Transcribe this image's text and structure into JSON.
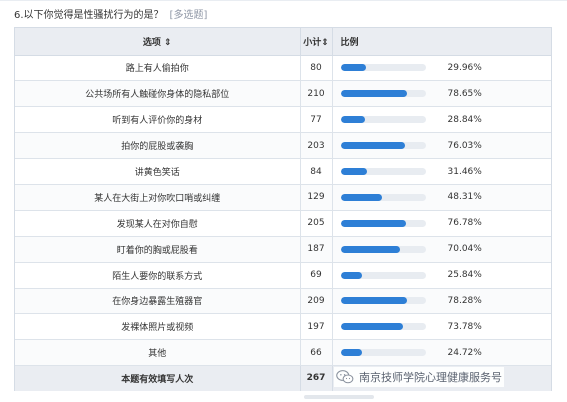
{
  "question": {
    "title": "6.以下你觉得是性骚扰行为的是？",
    "tag": "[多选题]"
  },
  "table": {
    "headers": {
      "option": "选项 ⇕",
      "count": "小计⇕",
      "ratio": "比例"
    },
    "rows": [
      {
        "option": "路上有人偷拍你",
        "count": "80",
        "percent": "29.96%",
        "fraction": 0.2996
      },
      {
        "option": "公共场所有人触碰你身体的隐私部位",
        "count": "210",
        "percent": "78.65%",
        "fraction": 0.7865
      },
      {
        "option": "听到有人评价你的身材",
        "count": "77",
        "percent": "28.84%",
        "fraction": 0.2884
      },
      {
        "option": "拍你的屁股或袭胸",
        "count": "203",
        "percent": "76.03%",
        "fraction": 0.7603
      },
      {
        "option": "讲黄色笑话",
        "count": "84",
        "percent": "31.46%",
        "fraction": 0.3146
      },
      {
        "option": "某人在大街上对你吹口哨或纠缠",
        "count": "129",
        "percent": "48.31%",
        "fraction": 0.4831
      },
      {
        "option": "发现某人在对你自慰",
        "count": "205",
        "percent": "76.78%",
        "fraction": 0.7678
      },
      {
        "option": "盯着你的胸或屁股看",
        "count": "187",
        "percent": "70.04%",
        "fraction": 0.7004
      },
      {
        "option": "陌生人要你的联系方式",
        "count": "69",
        "percent": "25.84%",
        "fraction": 0.2584
      },
      {
        "option": "在你身边暴露生殖器官",
        "count": "209",
        "percent": "78.28%",
        "fraction": 0.7828
      },
      {
        "option": "发裸体照片或视频",
        "count": "197",
        "percent": "73.78%",
        "fraction": 0.7378
      },
      {
        "option": "其他",
        "count": "66",
        "percent": "24.72%",
        "fraction": 0.2472
      }
    ],
    "footer": {
      "label": "本题有效填写人次",
      "count": "267"
    }
  },
  "colors": {
    "bar": "#2e7fd6",
    "bar_track": "#e8ecf1",
    "header_bg": "#eaedf2"
  },
  "watermark": {
    "icon": "wechat-icon",
    "text": "南京技师学院心理健康服务号"
  }
}
